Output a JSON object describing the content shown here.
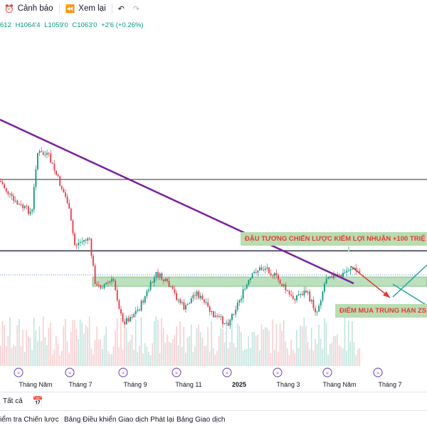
{
  "toolbar": {
    "alert_label": "Cảnh báo",
    "replay_label": "Xem lại",
    "undo_icon": "undo-icon",
    "redo_icon": "redo-icon"
  },
  "ohlc": {
    "open": "612",
    "high": "H1064'4",
    "low": "L1059'0",
    "close": "C1063'0",
    "change": "+2'6 (+0.26%)"
  },
  "annotations": {
    "top": "ĐẬU TƯƠNG CHIẾN LƯỢC KIẾM LỢI NHUẬN +100 TRIỆ",
    "bottom": "ĐIỂM MUA TRUNG HẠN ZS"
  },
  "time_axis": [
    {
      "label": "Tháng Năm",
      "bold": false
    },
    {
      "label": "Tháng 7",
      "bold": false
    },
    {
      "label": "Tháng 9",
      "bold": false
    },
    {
      "label": "Tháng 11",
      "bold": false
    },
    {
      "label": "2025",
      "bold": true
    },
    {
      "label": "Tháng 3",
      "bold": false
    },
    {
      "label": "Tháng Năm",
      "bold": false
    },
    {
      "label": "Tháng 7",
      "bold": false
    }
  ],
  "bottom_bar": {
    "all_label": "Tất cả",
    "calendar_icon": "calendar-icon"
  },
  "panel_tabs": [
    "iểm tra Chiến lược",
    "Bảng Điều khiển Giao dịch Phát lại",
    "Bảng Giao dịch"
  ],
  "colors": {
    "up": "#089981",
    "down": "#f23645",
    "trendline": "#7b1fa2",
    "zone": "#a5d6a7",
    "label_bg": "#b7ddb0",
    "label_text": "#e53935"
  }
}
